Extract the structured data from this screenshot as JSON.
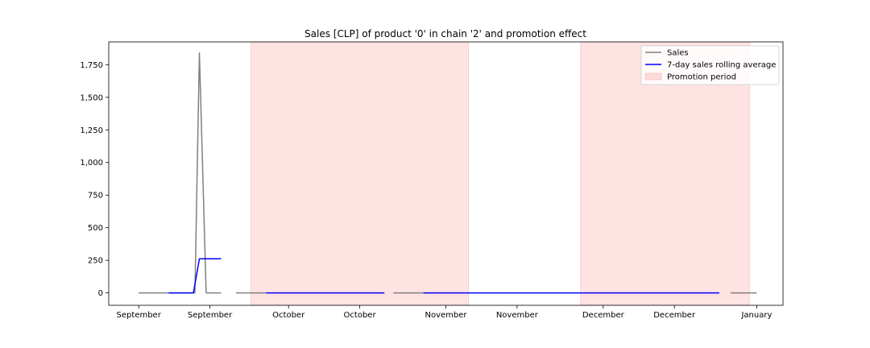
{
  "chart_data": {
    "type": "line",
    "title": "Sales [CLP] of product '0' in chain '2' and promotion effect",
    "xlabel": "",
    "ylabel": "",
    "ylim": [
      -95,
      1925
    ],
    "yticks": [
      0,
      250,
      500,
      750,
      1000,
      1250,
      1500,
      1750
    ],
    "ytick_labels": [
      "0",
      "250",
      "500",
      "750",
      "1,000",
      "1,250",
      "1,500",
      "1,750"
    ],
    "xlim": [
      -4,
      86
    ],
    "xticks": [
      0,
      9.5,
      20,
      29.5,
      41,
      50.5,
      62,
      71.5,
      82.5
    ],
    "xtick_labels": [
      "September",
      "September",
      "October",
      "October",
      "November",
      "November",
      "December",
      "December",
      "January"
    ],
    "grid": false,
    "legend_position": "top-right",
    "promotion_periods": [
      [
        15,
        44
      ],
      [
        59,
        81.5
      ]
    ],
    "series": [
      {
        "name": "Sales",
        "color": "#808080",
        "segments": [
          [
            [
              0,
              0
            ],
            [
              7.5,
              0
            ],
            [
              8.1,
              1840
            ],
            [
              9,
              0
            ],
            [
              11,
              0
            ]
          ],
          [
            [
              13,
              0
            ],
            [
              17,
              0
            ]
          ],
          [
            [
              34,
              0
            ],
            [
              38,
              0
            ]
          ],
          [
            [
              79,
              0
            ],
            [
              82.5,
              0
            ]
          ]
        ]
      },
      {
        "name": "7-day sales rolling average",
        "color": "#0000ff",
        "segments": [
          [
            [
              4,
              0
            ],
            [
              7.3,
              0
            ],
            [
              8.1,
              262
            ],
            [
              11,
              262
            ]
          ],
          [
            [
              17,
              0
            ],
            [
              32.8,
              0
            ]
          ],
          [
            [
              38,
              0
            ],
            [
              77.5,
              0
            ]
          ]
        ]
      }
    ],
    "promotion_legend": {
      "name": "Promotion period",
      "color": "#ffcccc"
    }
  }
}
